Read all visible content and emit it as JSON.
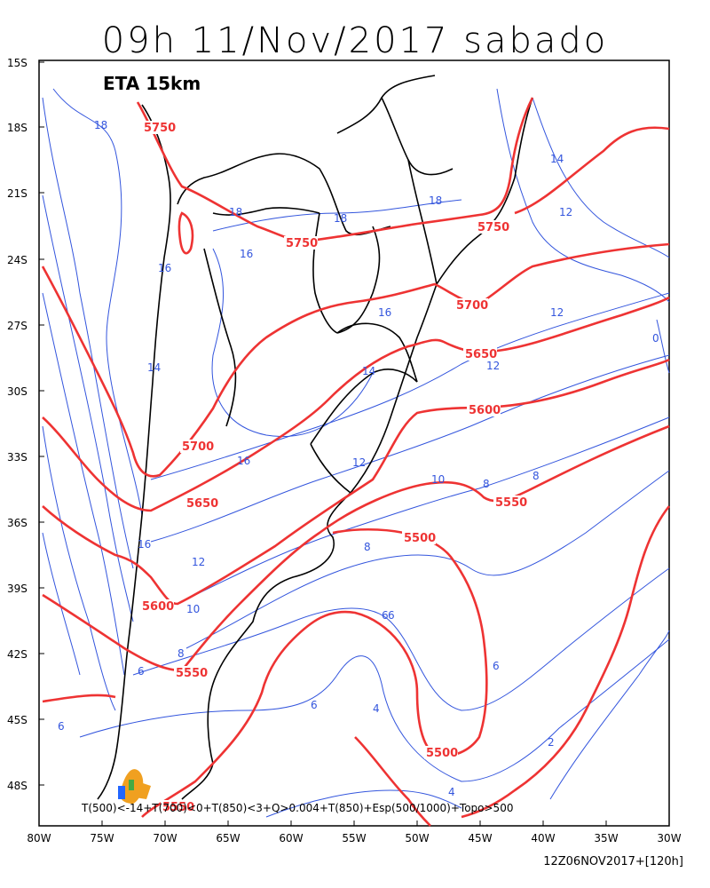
{
  "title": "09h 11/Nov/2017 sabado",
  "model_label": "ETA 15km",
  "legend_text": "T(500)<-14+T(700)<0+T(850)<3+Q>0.004+T(850)+Esp(500/1000)+Topo>500",
  "footer": "12Z06NOV2017+[120h]",
  "lat_labels": [
    "15S",
    "18S",
    "21S",
    "24S",
    "27S",
    "30S",
    "33S",
    "36S",
    "39S",
    "42S",
    "45S",
    "48S"
  ],
  "lon_labels": [
    "80W",
    "75W",
    "70W",
    "65W",
    "60W",
    "55W",
    "50W",
    "45W",
    "40W",
    "35W",
    "30W"
  ],
  "colors": {
    "geopotential": "#ee3333",
    "thickness_contour": "#3355dd",
    "coastline": "#000000",
    "precip_orange": "#f0a020",
    "precip_blue": "#2266ff",
    "precip_green": "#44aa44"
  },
  "geopotential_labels": [
    "5750",
    "5750",
    "5750",
    "5700",
    "5700",
    "5650",
    "5650",
    "5600",
    "5600",
    "5550",
    "5550",
    "5500",
    "5500",
    "5550"
  ],
  "thickness_labels": [
    "18",
    "18",
    "18",
    "18",
    "16",
    "16",
    "16",
    "16",
    "16",
    "14",
    "14",
    "14",
    "12",
    "12",
    "12",
    "12",
    "12",
    "10",
    "10",
    "8",
    "8",
    "8",
    "8",
    "6",
    "6",
    "6",
    "6",
    "6",
    "6",
    "4",
    "4",
    "2",
    "0"
  ]
}
